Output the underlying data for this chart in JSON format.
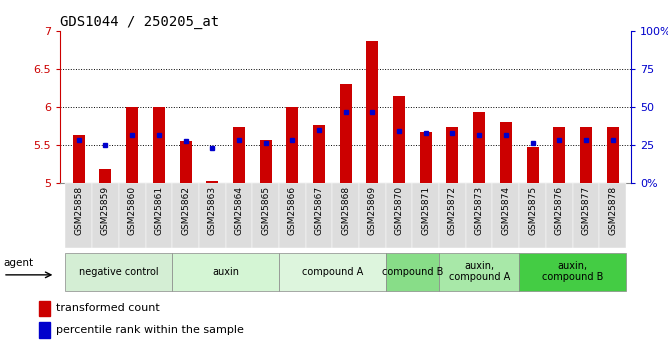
{
  "title": "GDS1044 / 250205_at",
  "samples": [
    "GSM25858",
    "GSM25859",
    "GSM25860",
    "GSM25861",
    "GSM25862",
    "GSM25863",
    "GSM25864",
    "GSM25865",
    "GSM25866",
    "GSM25867",
    "GSM25868",
    "GSM25869",
    "GSM25870",
    "GSM25871",
    "GSM25872",
    "GSM25873",
    "GSM25874",
    "GSM25875",
    "GSM25876",
    "GSM25877",
    "GSM25878"
  ],
  "bar_tops": [
    5.63,
    5.18,
    6.0,
    6.0,
    5.55,
    5.02,
    5.74,
    5.56,
    6.0,
    5.76,
    6.3,
    6.87,
    6.15,
    5.67,
    5.74,
    5.93,
    5.8,
    5.47,
    5.73,
    5.73,
    5.73
  ],
  "pct_y": [
    5.565,
    5.495,
    5.63,
    5.63,
    5.545,
    5.465,
    5.565,
    5.53,
    5.565,
    5.7,
    5.93,
    5.93,
    5.68,
    5.655,
    5.655,
    5.63,
    5.63,
    5.525,
    5.565,
    5.565,
    5.565
  ],
  "bar_bottom": 5.0,
  "bar_color": "#cc0000",
  "pct_color": "#0000cc",
  "ylim": [
    5.0,
    7.0
  ],
  "ylim_r": [
    0,
    100
  ],
  "yticks_l": [
    5.0,
    5.5,
    6.0,
    6.5,
    7.0
  ],
  "ytick_labels_l": [
    "5",
    "5.5",
    "6",
    "6.5",
    "7"
  ],
  "yticks_r": [
    0,
    25,
    50,
    75,
    100
  ],
  "ytick_labels_r": [
    "0%",
    "25",
    "50",
    "75",
    "100%"
  ],
  "hgrid": [
    5.5,
    6.0,
    6.5
  ],
  "groups": [
    {
      "label": "negative control",
      "start": 0,
      "end": 4,
      "color": "#d4eed4"
    },
    {
      "label": "auxin",
      "start": 4,
      "end": 8,
      "color": "#d4f5d4"
    },
    {
      "label": "compound A",
      "start": 8,
      "end": 12,
      "color": "#ddf5dd"
    },
    {
      "label": "compound B",
      "start": 12,
      "end": 14,
      "color": "#88dd88"
    },
    {
      "label": "auxin,\ncompound A",
      "start": 14,
      "end": 17,
      "color": "#a8e8a8"
    },
    {
      "label": "auxin,\ncompound B",
      "start": 17,
      "end": 21,
      "color": "#44cc44"
    }
  ],
  "xtick_bg": "#e0e0e0",
  "legend": [
    "transformed count",
    "percentile rank within the sample"
  ],
  "title_fontsize": 10,
  "tick_fontsize": 6.5,
  "group_fontsize": 7,
  "legend_fontsize": 8
}
